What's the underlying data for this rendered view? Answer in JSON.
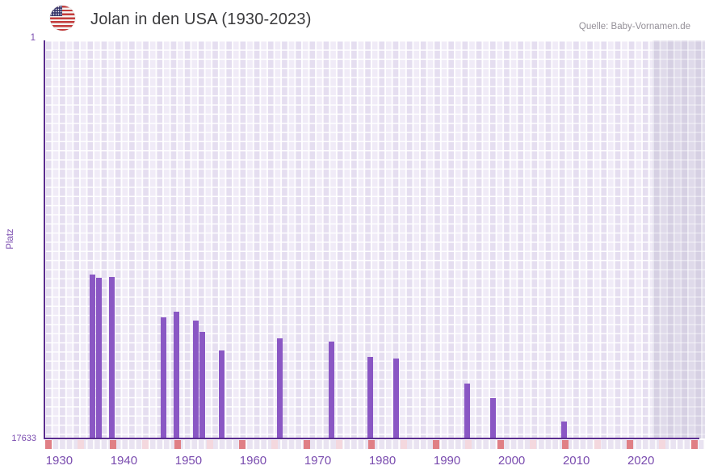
{
  "header": {
    "title": "Jolan in den USA (1930-2023)",
    "source": "Quelle: Baby-Vornamen.de",
    "flag": "us-flag-icon"
  },
  "chart_data": {
    "type": "bar",
    "title": "Jolan in den USA (1930-2023)",
    "xlabel": "",
    "ylabel": "Platz",
    "grid": true,
    "y_axis": {
      "top_label": "1",
      "bottom_label": "17633",
      "min": 1,
      "max": 17633,
      "inverted": true,
      "scale": "linear"
    },
    "x_axis": {
      "start_year": 1930,
      "end_year": 2023,
      "ticks": [
        {
          "year": 1930,
          "label": "1930"
        },
        {
          "year": 1940,
          "label": "1940"
        },
        {
          "year": 1950,
          "label": "1950"
        },
        {
          "year": 1960,
          "label": "1960"
        },
        {
          "year": 1970,
          "label": "1970"
        },
        {
          "year": 1980,
          "label": "1980"
        },
        {
          "year": 1990,
          "label": "1990"
        },
        {
          "year": 2000,
          "label": "2000"
        },
        {
          "year": 2010,
          "label": "2010"
        },
        {
          "year": 2020,
          "label": "2020"
        }
      ],
      "decade_marks": [
        1930,
        1940,
        1950,
        1960,
        1970,
        1980,
        1990,
        2000,
        2010,
        2020,
        2030
      ],
      "half_decade_marks": [
        1935,
        1945,
        1955,
        1965,
        1975,
        1985,
        1995,
        2005,
        2015,
        2025
      ],
      "future_region_start": 2024
    },
    "series": [
      {
        "name": "Platz",
        "points": [
          {
            "year": 1937,
            "rank": 10360
          },
          {
            "year": 1938,
            "rank": 10530
          },
          {
            "year": 1940,
            "rank": 10470
          },
          {
            "year": 1948,
            "rank": 12260
          },
          {
            "year": 1950,
            "rank": 12010
          },
          {
            "year": 1953,
            "rank": 12420
          },
          {
            "year": 1954,
            "rank": 12900
          },
          {
            "year": 1957,
            "rank": 13720
          },
          {
            "year": 1966,
            "rank": 13210
          },
          {
            "year": 1974,
            "rank": 13330
          },
          {
            "year": 1980,
            "rank": 14010
          },
          {
            "year": 1984,
            "rank": 14090
          },
          {
            "year": 1995,
            "rank": 15200
          },
          {
            "year": 1999,
            "rank": 15830
          },
          {
            "year": 2010,
            "rank": 16870
          }
        ]
      }
    ],
    "colors": {
      "bar": "#8a57c4",
      "axis": "#5b2d8f",
      "tick_text": "#7a4caf",
      "plot_background": "#f0ebf7",
      "future_background": "#dfdaea",
      "decade_mark": "#e07f85",
      "half_decade_mark": "#f4d8de",
      "strip_background": "#e9e3f1"
    },
    "legend": "none"
  }
}
